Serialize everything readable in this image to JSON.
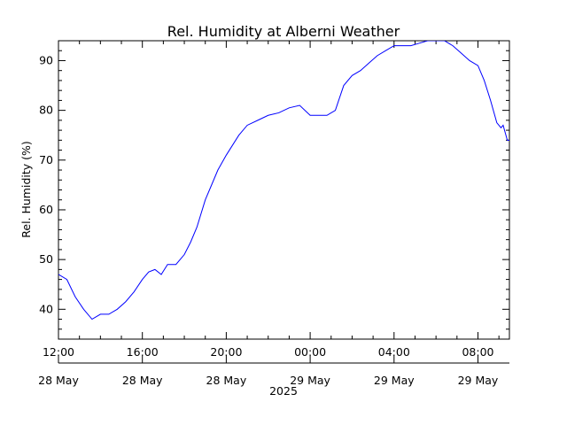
{
  "chart_data": {
    "type": "line",
    "title": "Rel. Humidity at Alberni Weather",
    "ylabel": "Rel. Humidity (%)",
    "xlabel": "2025",
    "ylim": [
      34,
      94
    ],
    "yticks": [
      40,
      50,
      60,
      70,
      80,
      90
    ],
    "xlim_hours": [
      0,
      21.5
    ],
    "xticks": [
      {
        "time": "12:00",
        "date": "28 May",
        "hour": 0
      },
      {
        "time": "16:00",
        "date": "28 May",
        "hour": 4
      },
      {
        "time": "20:00",
        "date": "28 May",
        "hour": 8
      },
      {
        "time": "00:00",
        "date": "29 May",
        "hour": 12
      },
      {
        "time": "04:00",
        "date": "29 May",
        "hour": 16
      },
      {
        "time": "08:00",
        "date": "29 May",
        "hour": 20
      }
    ],
    "grid": false,
    "color": "#0000ff",
    "series": [
      {
        "x": [
          0,
          0.4,
          0.8,
          1.2,
          1.6,
          2.0,
          2.4,
          2.8,
          3.2,
          3.6,
          4.0,
          4.3,
          4.6,
          4.9,
          5.2,
          5.6,
          6.0,
          6.3,
          6.6,
          7.0,
          7.3,
          7.6,
          8.0,
          8.3,
          8.6,
          9.0,
          9.5,
          10.0,
          10.5,
          11.0,
          11.5,
          12.0,
          12.4,
          12.8,
          13.2,
          13.6,
          14.0,
          14.4,
          14.8,
          15.2,
          15.6,
          16.0,
          16.4,
          16.8,
          17.2,
          17.6,
          18.0,
          18.4,
          18.8,
          19.2,
          19.6,
          20.0,
          20.3,
          20.6,
          20.9,
          21.1,
          21.2,
          21.3,
          21.4,
          21.5
        ],
        "values": [
          47,
          46,
          42.5,
          40,
          38,
          39,
          39,
          40,
          41.5,
          43.5,
          46,
          47.5,
          48,
          47,
          49,
          49,
          51,
          53.5,
          56.5,
          62,
          65,
          68,
          71,
          73,
          75,
          77,
          78,
          79,
          79.5,
          80.5,
          81,
          79,
          79,
          79,
          80,
          85,
          87,
          88,
          89.5,
          91,
          92,
          93,
          93,
          93,
          93.5,
          94,
          94,
          94,
          93,
          91.5,
          90,
          89,
          86,
          82,
          77.5,
          76.5,
          77,
          75.5,
          74,
          74
        ]
      }
    ]
  }
}
